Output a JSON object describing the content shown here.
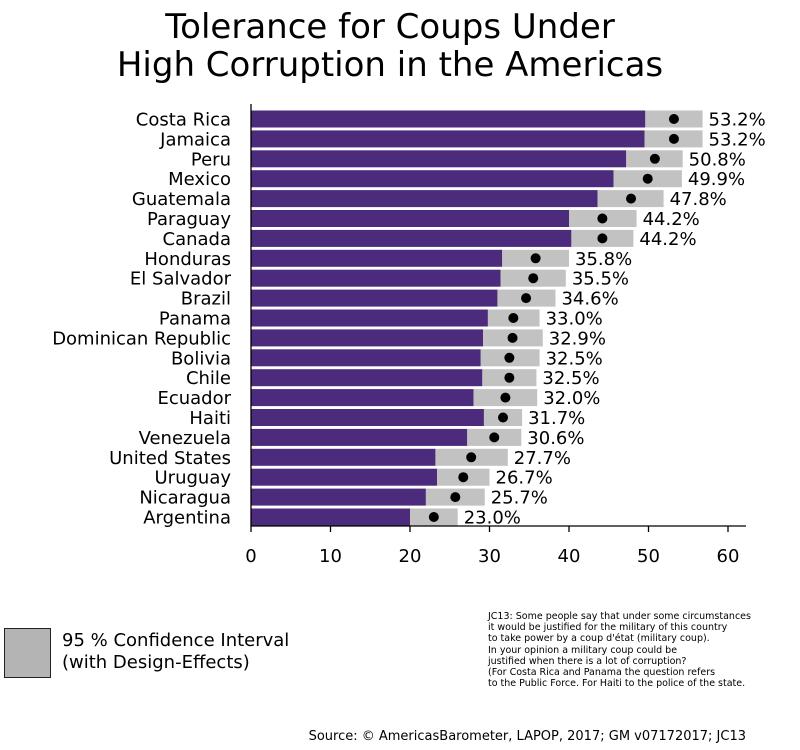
{
  "title": {
    "line1": "Tolerance for Coups Under",
    "line2": "High Corruption in the Americas"
  },
  "chart_data": {
    "type": "bar",
    "title": "Tolerance for Coups Under High Corruption in the Americas",
    "xlabel": "",
    "ylabel": "",
    "xlim": [
      0,
      62
    ],
    "xticks": [
      0,
      10,
      20,
      30,
      40,
      50,
      60
    ],
    "categories": [
      "Costa Rica",
      "Jamaica",
      "Peru",
      "Mexico",
      "Guatemala",
      "Paraguay",
      "Canada",
      "Honduras",
      "El Salvador",
      "Brazil",
      "Panama",
      "Dominican Republic",
      "Bolivia",
      "Chile",
      "Ecuador",
      "Haiti",
      "Venezuela",
      "United States",
      "Uruguay",
      "Nicaragua",
      "Argentina"
    ],
    "values": [
      53.2,
      53.2,
      50.8,
      49.9,
      47.8,
      44.2,
      44.2,
      35.8,
      35.5,
      34.6,
      33.0,
      32.9,
      32.5,
      32.5,
      32.0,
      31.7,
      30.6,
      27.7,
      26.7,
      25.7,
      23.0
    ],
    "value_labels": [
      "53.2%",
      "53.2%",
      "50.8%",
      "49.9%",
      "47.8%",
      "44.2%",
      "44.2%",
      "35.8%",
      "35.5%",
      "34.6%",
      "33.0%",
      "32.9%",
      "32.5%",
      "32.5%",
      "32.0%",
      "31.7%",
      "30.6%",
      "27.7%",
      "26.7%",
      "25.7%",
      "23.0%"
    ],
    "ci_lower": [
      49.6,
      49.5,
      47.2,
      45.6,
      43.6,
      40.0,
      40.3,
      31.6,
      31.4,
      31.0,
      29.8,
      29.2,
      28.9,
      29.1,
      28.0,
      29.3,
      27.2,
      23.2,
      23.4,
      22.0,
      20.0
    ],
    "ci_upper": [
      56.8,
      56.8,
      54.3,
      54.2,
      51.9,
      48.5,
      48.1,
      40.0,
      39.6,
      38.3,
      36.3,
      36.7,
      36.3,
      35.9,
      36.0,
      34.1,
      34.0,
      32.3,
      30.0,
      29.4,
      26.0
    ],
    "legend": "95 % Confidence Interval (with Design-Effects)",
    "grid": false
  },
  "legend": {
    "line1": "95 % Confidence Interval",
    "line2": "(with Design-Effects)"
  },
  "note_lines": [
    "JC13: Some people say that under some circumstances",
    "it would be justified for the military of this country",
    "to take power by a coup d'état (military coup).",
    "In your opinion a military coup could be",
    "justified when there is a lot of corruption?",
    "(For Costa Rica and Panama the question refers",
    "to the Public Force. For Haiti to the police of the state."
  ],
  "source": "Source: © AmericasBarometer, LAPOP, 2017; GM v07172017; JC13",
  "colors": {
    "bar": "#4c2a7c",
    "ci": "#c2c2c2",
    "dot": "#000000"
  }
}
